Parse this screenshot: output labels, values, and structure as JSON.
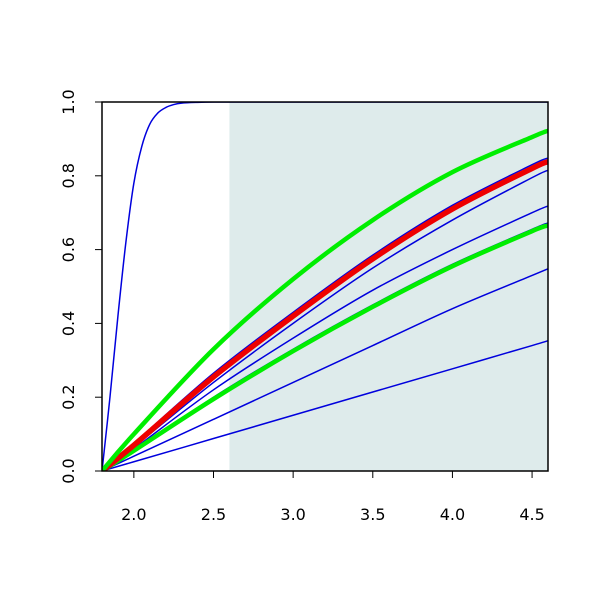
{
  "chart_data": {
    "type": "line",
    "title": "",
    "xlabel": "",
    "ylabel": "",
    "xlim": [
      1.8,
      4.6
    ],
    "ylim": [
      0.0,
      1.0
    ],
    "x_ticks": [
      2.0,
      2.5,
      3.0,
      3.5,
      4.0,
      4.5
    ],
    "x_tick_labels": [
      "2.0",
      "2.5",
      "3.0",
      "3.5",
      "4.0",
      "4.5"
    ],
    "y_ticks": [
      0.0,
      0.2,
      0.4,
      0.6,
      0.8,
      1.0
    ],
    "y_tick_labels": [
      "0.0",
      "0.2",
      "0.4",
      "0.6",
      "0.8",
      "1.0"
    ],
    "grid": false,
    "legend": "none",
    "shaded_region": {
      "x": [
        2.6,
        4.6
      ],
      "y": [
        0.0,
        1.0
      ],
      "color": "#deebeb"
    },
    "series": [
      {
        "color": "#0000dd",
        "width": 1.5,
        "x": [
          1.8,
          1.85,
          1.9,
          1.95,
          2.0,
          2.05,
          2.1,
          2.15,
          2.2,
          2.25,
          2.3,
          2.4,
          2.5,
          2.6,
          2.8,
          3.0,
          3.5,
          4.0,
          4.6
        ],
        "y": [
          0.0,
          0.2,
          0.42,
          0.62,
          0.78,
          0.88,
          0.94,
          0.97,
          0.985,
          0.993,
          0.997,
          0.999,
          1.0,
          1.0,
          1.0,
          1.0,
          1.0,
          1.0,
          1.0
        ]
      },
      {
        "color": "#0000dd",
        "width": 1.5,
        "x": [
          1.8,
          2.0,
          2.5,
          3.0,
          3.5,
          4.0,
          4.5,
          4.6
        ],
        "y": [
          0.0,
          0.025,
          0.088,
          0.151,
          0.214,
          0.277,
          0.34,
          0.353
        ]
      },
      {
        "color": "#0000dd",
        "width": 1.5,
        "x": [
          1.8,
          2.0,
          2.5,
          3.0,
          3.5,
          4.0,
          4.5,
          4.6
        ],
        "y": [
          0.0,
          0.04,
          0.14,
          0.24,
          0.34,
          0.44,
          0.53,
          0.548
        ]
      },
      {
        "color": "#0000dd",
        "width": 1.5,
        "x": [
          1.8,
          2.0,
          2.5,
          3.0,
          3.5,
          4.0,
          4.5,
          4.6
        ],
        "y": [
          0.0,
          0.055,
          0.2,
          0.33,
          0.45,
          0.56,
          0.655,
          0.672
        ]
      },
      {
        "color": "#0000dd",
        "width": 1.5,
        "x": [
          1.8,
          2.0,
          2.5,
          3.0,
          3.5,
          4.0,
          4.5,
          4.6
        ],
        "y": [
          0.0,
          0.06,
          0.22,
          0.36,
          0.49,
          0.6,
          0.7,
          0.718
        ]
      },
      {
        "color": "#0000dd",
        "width": 1.5,
        "x": [
          1.8,
          2.0,
          2.5,
          3.0,
          3.5,
          4.0,
          4.5,
          4.6
        ],
        "y": [
          0.0,
          0.065,
          0.24,
          0.4,
          0.55,
          0.68,
          0.795,
          0.815
        ]
      },
      {
        "color": "#0000dd",
        "width": 1.5,
        "x": [
          1.8,
          2.0,
          2.5,
          3.0,
          3.5,
          4.0,
          4.5,
          4.6
        ],
        "y": [
          0.0,
          0.075,
          0.265,
          0.43,
          0.585,
          0.72,
          0.83,
          0.848
        ]
      },
      {
        "color": "#00ee00",
        "width": 4.5,
        "x": [
          1.8,
          2.0,
          2.5,
          3.0,
          3.5,
          4.0,
          4.5,
          4.6
        ],
        "y": [
          0.0,
          0.055,
          0.195,
          0.325,
          0.445,
          0.555,
          0.65,
          0.665
        ]
      },
      {
        "color": "#ee0000",
        "width": 5.5,
        "x": [
          1.8,
          2.0,
          2.5,
          3.0,
          3.5,
          4.0,
          4.5,
          4.6
        ],
        "y": [
          0.0,
          0.07,
          0.255,
          0.42,
          0.575,
          0.71,
          0.82,
          0.838
        ]
      },
      {
        "color": "#00ee00",
        "width": 4.5,
        "x": [
          1.8,
          2.0,
          2.5,
          3.0,
          3.5,
          4.0,
          4.5,
          4.6
        ],
        "y": [
          0.0,
          0.1,
          0.33,
          0.52,
          0.68,
          0.81,
          0.905,
          0.922
        ]
      }
    ]
  }
}
